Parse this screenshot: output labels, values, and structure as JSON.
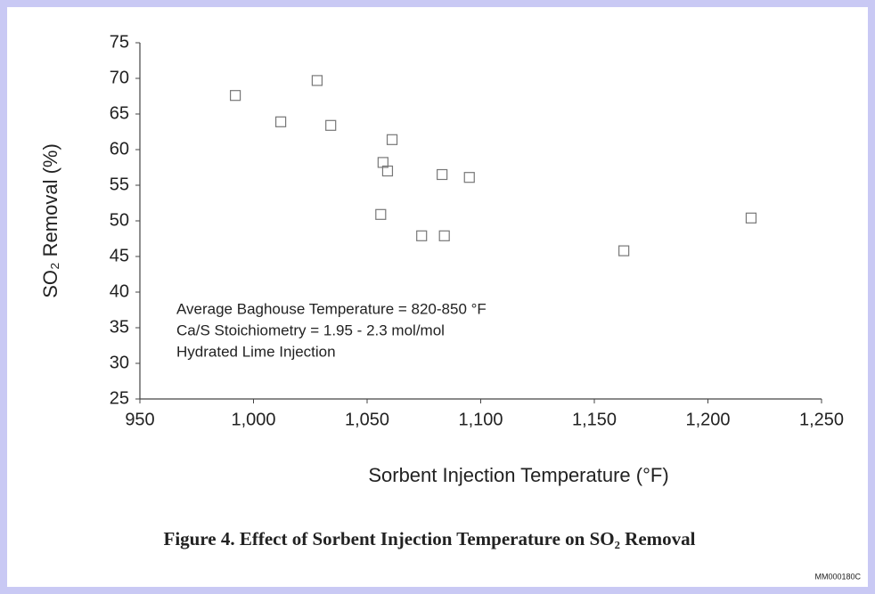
{
  "chart_data": {
    "type": "scatter",
    "x": [
      992,
      1012,
      1028,
      1034,
      1061,
      1057,
      1059,
      1056,
      1083,
      1095,
      1074,
      1084,
      1163,
      1219
    ],
    "values": [
      67.6,
      63.9,
      69.7,
      63.4,
      61.4,
      58.2,
      57,
      50.9,
      56.5,
      56.1,
      47.9,
      47.9,
      45.8,
      50.4
    ],
    "color": "#777777",
    "xlim": [
      950,
      1250
    ],
    "xticks": [
      950,
      {
        "value": 1000,
        "label": "1,000"
      },
      {
        "value": 1050,
        "label": "1,050"
      },
      {
        "value": 1100,
        "label": "1,100"
      },
      {
        "value": 1150,
        "label": "1,150"
      },
      {
        "value": 1200,
        "label": "1,200"
      },
      {
        "value": 1250,
        "label": "1,250"
      }
    ],
    "ylim": [
      25,
      75
    ],
    "yticks": [
      25,
      30,
      35,
      40,
      45,
      50,
      55,
      60,
      65,
      70,
      75
    ],
    "xlabel": "Sorbent Injection Temperature (°F)",
    "ylabel": "SO₂ Removal (%)",
    "annotations": [
      "Average Baghouse Temperature = 820-850 °F",
      "Ca/S Stoichiometry = 1.95 - 2.3 mol/mol",
      "Hydrated Lime Injection"
    ],
    "caption": "Figure 4.  Effect of Sorbent Injection Temperature on SO₂ Removal",
    "figure_id": "MM000180C"
  }
}
